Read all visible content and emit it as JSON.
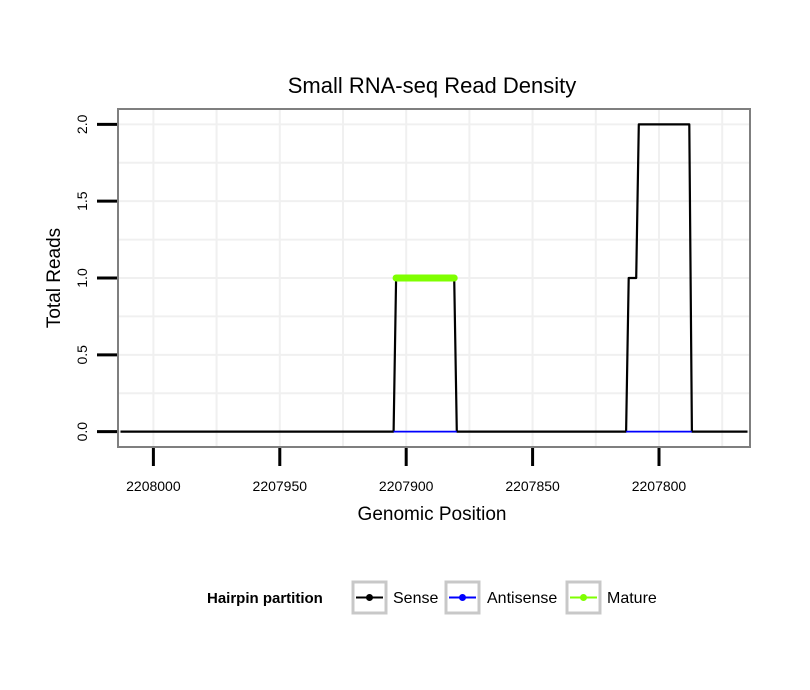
{
  "chart_data": {
    "type": "line",
    "title": "Small RNA-seq Read Density",
    "xlabel": "Genomic Position",
    "ylabel": "Total Reads",
    "x_reversed": true,
    "xlim": [
      2208014,
      2207764
    ],
    "ylim": [
      -0.1,
      2.1
    ],
    "xticks": [
      2208000,
      2207950,
      2207900,
      2207850,
      2207800
    ],
    "xtick_labels": [
      "2208000",
      "2207950",
      "2207900",
      "2207850",
      "2207800"
    ],
    "yticks": [
      0.0,
      0.5,
      1.0,
      1.5,
      2.0
    ],
    "ytick_labels": [
      "0.0",
      "0.5",
      "1.0",
      "1.5",
      "2.0"
    ],
    "grid": true,
    "legend_position": "bottom",
    "legend_title": "Hairpin partition",
    "series": [
      {
        "name": "Sense",
        "color": "#000000",
        "x": [
          2208013,
          2207905,
          2207904,
          2207881,
          2207880,
          2207813,
          2207812,
          2207809,
          2207808,
          2207788,
          2207787,
          2207765
        ],
        "y": [
          0,
          0,
          1,
          1,
          0,
          0,
          1,
          1,
          2,
          2,
          0,
          0
        ]
      },
      {
        "name": "Antisense",
        "color": "#0000ff",
        "x": [
          2207905,
          2207880,
          2207813,
          2207787
        ],
        "y": [
          0,
          0,
          0,
          0
        ],
        "segments": [
          [
            0,
            1
          ],
          [
            2,
            3
          ]
        ]
      },
      {
        "name": "Mature",
        "color": "#7fff00",
        "x": [
          2207904,
          2207881
        ],
        "y": [
          1,
          1
        ]
      }
    ]
  }
}
